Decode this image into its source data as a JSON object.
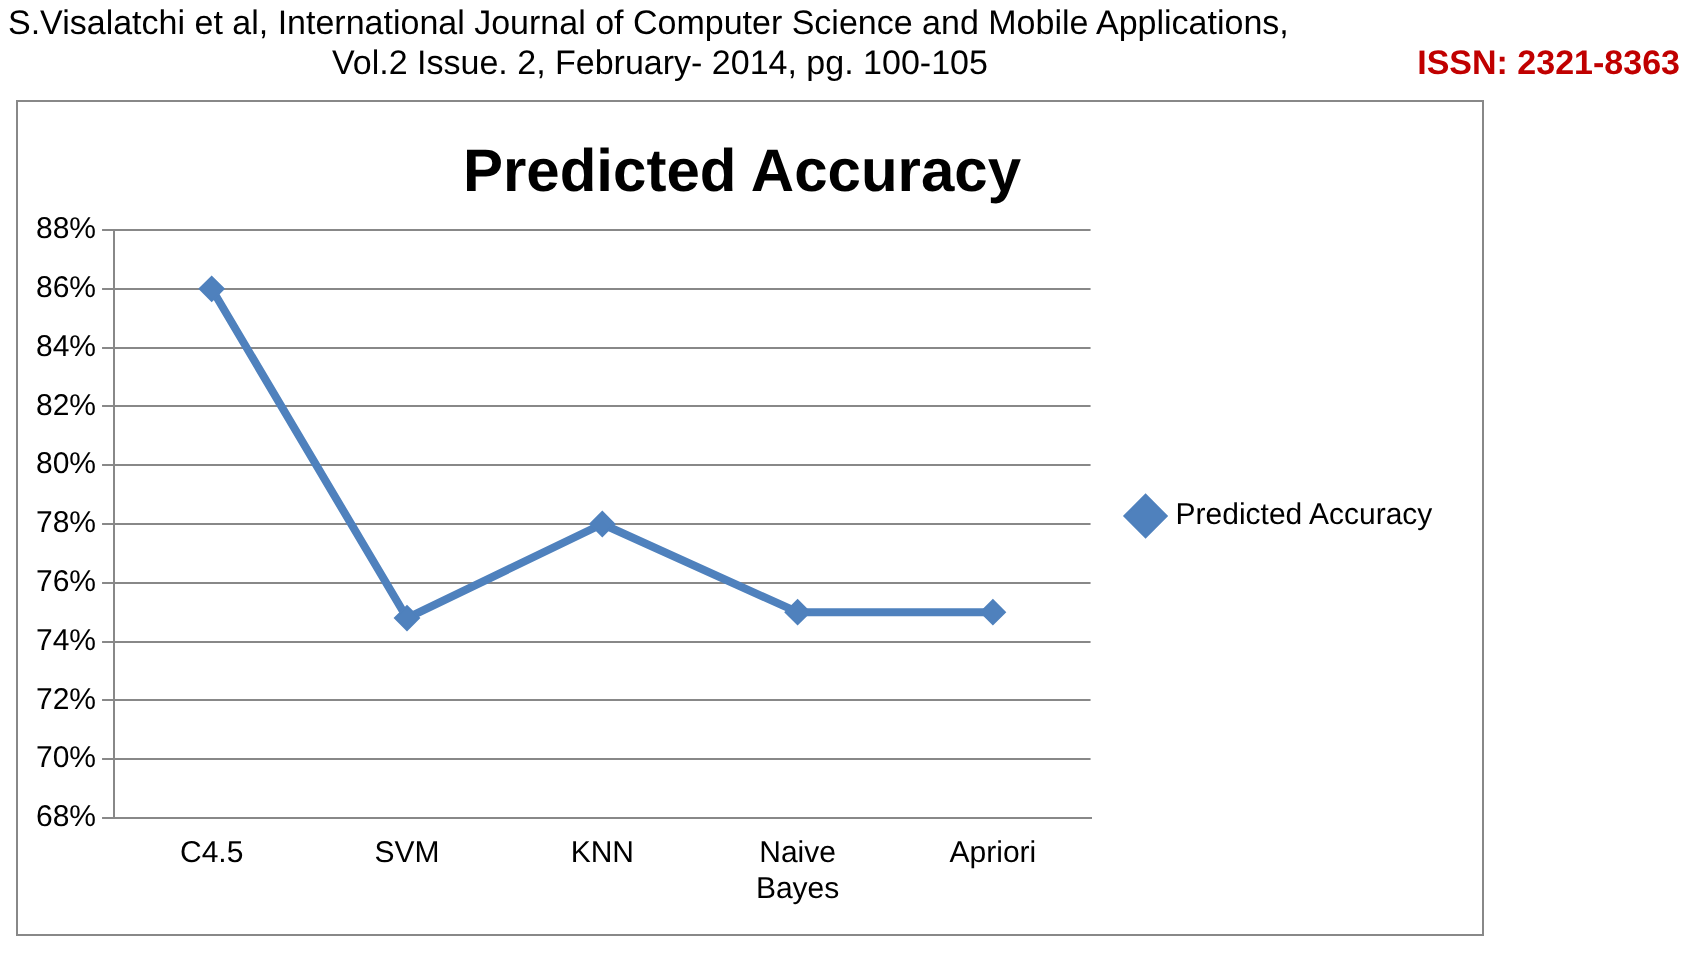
{
  "chart_data": {
    "type": "line",
    "title": "Predicted Accuracy",
    "annotations": [
      "S.Visalatchi et al, International Journal of Computer Science and Mobile Applications,",
      "Vol.2 Issue. 2, February- 2014, pg. 100-105",
      "ISSN: 2321-8363"
    ],
    "categories": [
      "C4.5",
      "SVM",
      "KNN",
      "Naive Bayes",
      "Apriori"
    ],
    "series": [
      {
        "name": "Predicted Accuracy",
        "color": "#4f81bd",
        "values": [
          86,
          74.8,
          78,
          75,
          75
        ]
      }
    ],
    "ylim": [
      68,
      88
    ],
    "yticks": [
      {
        "value": 68,
        "label": "68%"
      },
      {
        "value": 70,
        "label": "70%"
      },
      {
        "value": 72,
        "label": "72%"
      },
      {
        "value": 74,
        "label": "74%"
      },
      {
        "value": 76,
        "label": "76%"
      },
      {
        "value": 78,
        "label": "78%"
      },
      {
        "value": 80,
        "label": "80%"
      },
      {
        "value": 82,
        "label": "82%"
      },
      {
        "value": 84,
        "label": "84%"
      },
      {
        "value": 86,
        "label": "86%"
      },
      {
        "value": 88,
        "label": "88%"
      }
    ],
    "grid": "y",
    "legend": "right",
    "marker": "diamond",
    "line_style": "solid"
  }
}
